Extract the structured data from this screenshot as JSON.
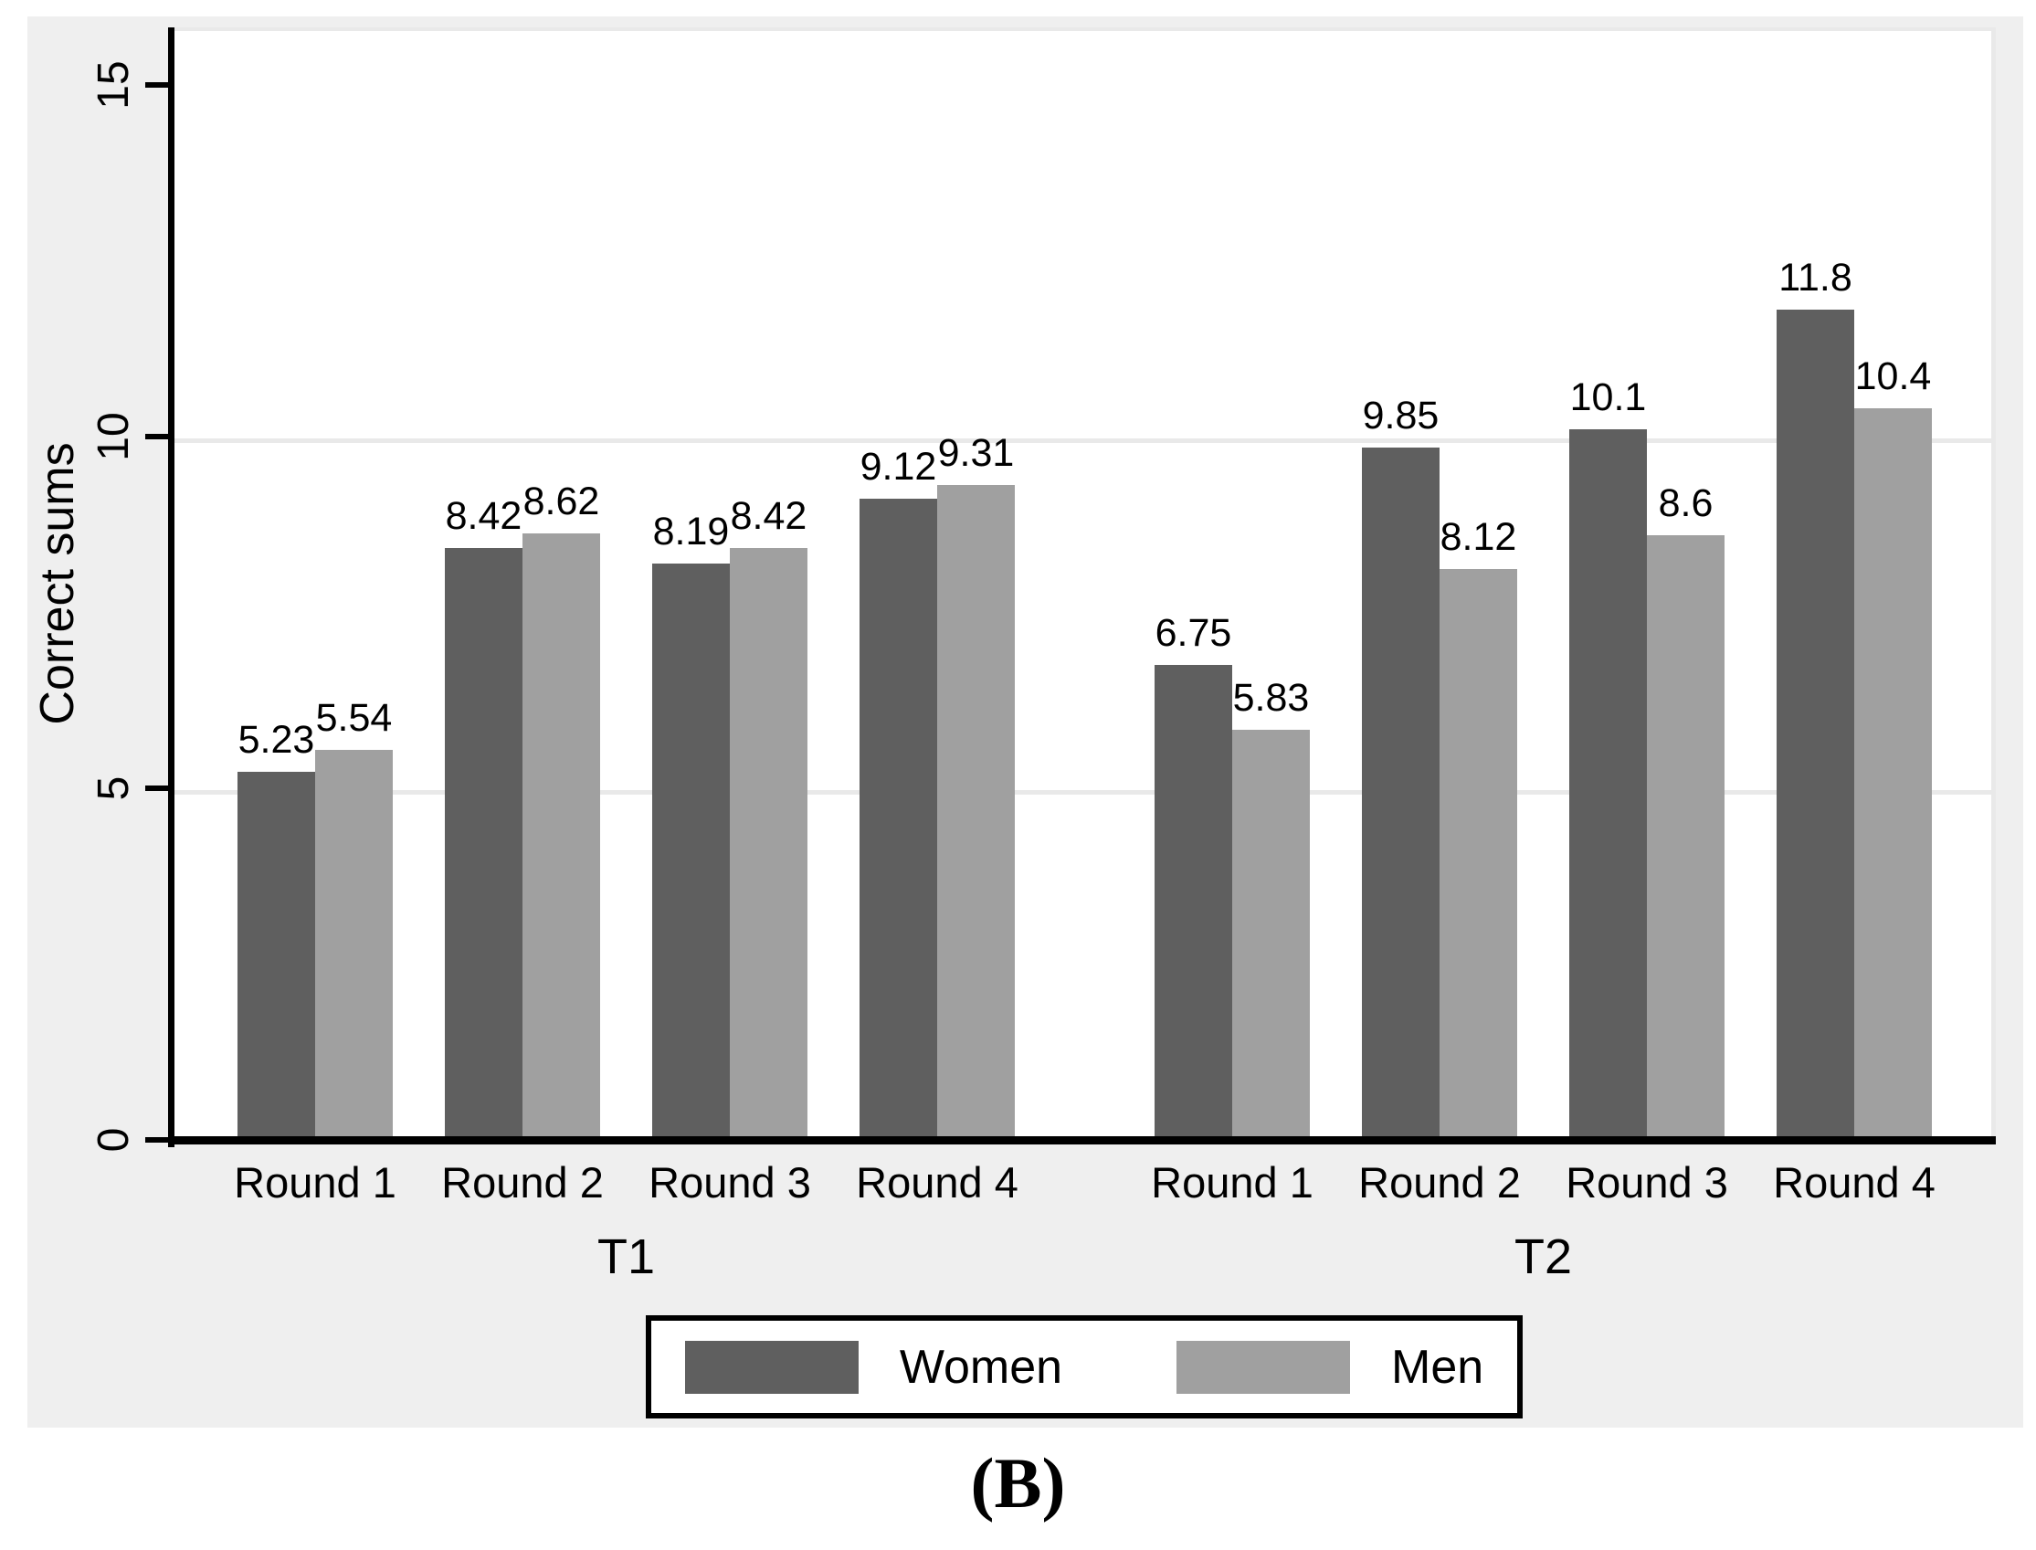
{
  "figure": {
    "caption": "(B)",
    "background_color": "#efefef",
    "plot_background_color": "#ffffff",
    "gridline_color": "#e9e9e9",
    "axis_color": "#000000"
  },
  "chart_data": {
    "type": "bar",
    "title": "",
    "ylabel": "Correct sums",
    "xlabel": "",
    "ylim": [
      0,
      15
    ],
    "yticks": [
      0,
      5,
      10,
      15
    ],
    "gridline_values": [
      5,
      10
    ],
    "grid": true,
    "legend_position": "bottom",
    "groups": [
      "T1",
      "T2"
    ],
    "categories": [
      "Round 1",
      "Round 2",
      "Round 3",
      "Round 4"
    ],
    "series": [
      {
        "name": "Women",
        "color": "#5f5f5f",
        "values": {
          "T1": [
            5.23,
            8.42,
            8.19,
            9.12
          ],
          "T2": [
            6.75,
            9.85,
            10.1,
            11.8
          ]
        }
      },
      {
        "name": "Men",
        "color": "#a0a0a0",
        "values": {
          "T1": [
            5.54,
            8.62,
            8.42,
            9.31
          ],
          "T2": [
            5.83,
            8.12,
            8.6,
            10.4
          ]
        }
      }
    ],
    "bar_value_labels_visible": true
  }
}
